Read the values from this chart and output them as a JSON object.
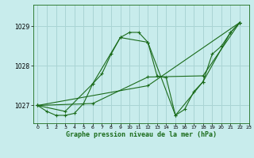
{
  "title": "Graphe pression niveau de la mer (hPa)",
  "bg_color": "#c8ecec",
  "grid_color": "#aad4d4",
  "line_color": "#1a6b1a",
  "xlim": [
    -0.5,
    23
  ],
  "ylim": [
    1026.55,
    1029.55
  ],
  "yticks": [
    1027,
    1028,
    1029
  ],
  "xticks": [
    0,
    1,
    2,
    3,
    4,
    5,
    6,
    7,
    8,
    9,
    10,
    11,
    12,
    13,
    14,
    15,
    16,
    17,
    18,
    19,
    20,
    21,
    22,
    23
  ],
  "series1": [
    [
      0,
      1027.0
    ],
    [
      1,
      1026.85
    ],
    [
      2,
      1026.75
    ],
    [
      3,
      1026.75
    ],
    [
      4,
      1026.8
    ],
    [
      5,
      1027.05
    ],
    [
      6,
      1027.55
    ],
    [
      7,
      1027.8
    ],
    [
      8,
      1028.3
    ],
    [
      9,
      1028.72
    ],
    [
      10,
      1028.85
    ],
    [
      11,
      1028.85
    ],
    [
      12,
      1028.6
    ],
    [
      13,
      1027.75
    ],
    [
      14,
      1027.7
    ],
    [
      15,
      1026.75
    ],
    [
      16,
      1026.9
    ],
    [
      17,
      1027.35
    ],
    [
      18,
      1027.6
    ],
    [
      19,
      1028.3
    ],
    [
      20,
      1028.5
    ],
    [
      21,
      1028.85
    ],
    [
      22,
      1029.1
    ]
  ],
  "series2": [
    [
      0,
      1027.0
    ],
    [
      3,
      1026.85
    ],
    [
      6,
      1027.55
    ],
    [
      9,
      1028.72
    ],
    [
      12,
      1028.6
    ],
    [
      15,
      1026.75
    ],
    [
      18,
      1027.6
    ],
    [
      21,
      1028.85
    ],
    [
      22,
      1029.1
    ]
  ],
  "series3": [
    [
      0,
      1027.0
    ],
    [
      6,
      1027.05
    ],
    [
      12,
      1027.72
    ],
    [
      18,
      1027.75
    ],
    [
      22,
      1029.1
    ]
  ],
  "series4": [
    [
      0,
      1027.0
    ],
    [
      12,
      1027.5
    ],
    [
      22,
      1029.1
    ]
  ]
}
